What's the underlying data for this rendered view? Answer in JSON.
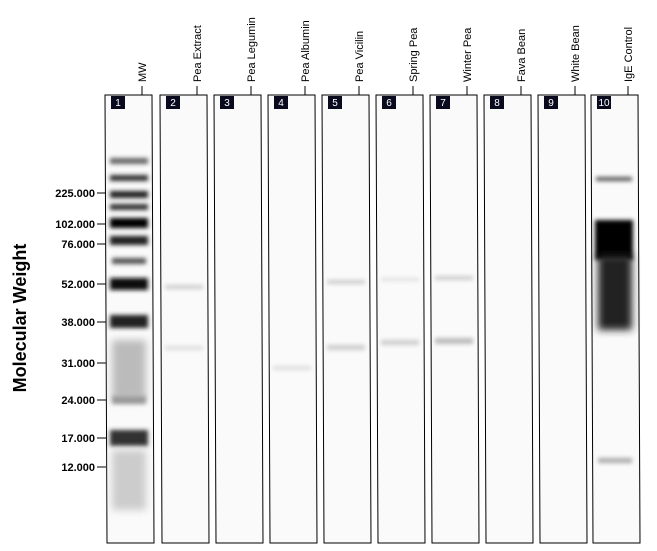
{
  "y_axis": {
    "title": "Molecular Weight",
    "markers": [
      "225.000",
      "102.000",
      "76.000",
      "52.000",
      "38.000",
      "31.000",
      "24.000",
      "17.000",
      "12.000"
    ]
  },
  "lanes": [
    {
      "number": "1",
      "name": "MW"
    },
    {
      "number": "2",
      "name": "Pea Extract"
    },
    {
      "number": "3",
      "name": "Pea Legumin"
    },
    {
      "number": "4",
      "name": "Pea Albumin"
    },
    {
      "number": "5",
      "name": "Pea Vicilin"
    },
    {
      "number": "6",
      "name": "Spring Pea"
    },
    {
      "number": "7",
      "name": "Winter Pea"
    },
    {
      "number": "8",
      "name": "Fava Bean"
    },
    {
      "number": "9",
      "name": "White Bean"
    },
    {
      "number": "10",
      "name": "IgE Control"
    }
  ]
}
